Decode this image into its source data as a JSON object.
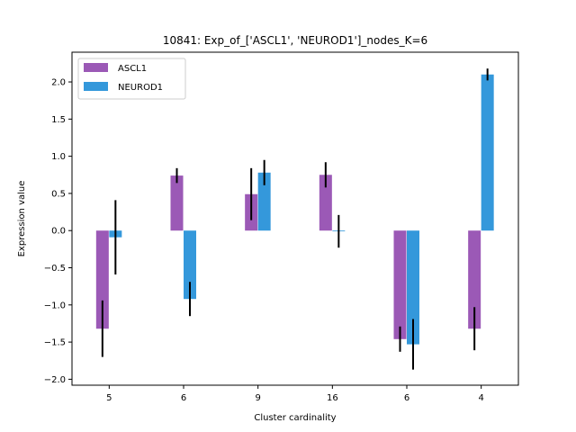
{
  "chart_data": {
    "type": "bar",
    "title": "10841: Exp_of_['ASCL1', 'NEUROD1']_nodes_K=6",
    "xlabel": "Cluster cardinality",
    "ylabel": "Expression value",
    "categories": [
      "5",
      "6",
      "9",
      "16",
      "6",
      "4"
    ],
    "ylim": [
      -2.08,
      2.4
    ],
    "yticks": [
      -2.0,
      -1.5,
      -1.0,
      -0.5,
      0.0,
      0.5,
      1.0,
      1.5,
      2.0
    ],
    "ytick_labels": [
      "−2.0",
      "−1.5",
      "−1.0",
      "−0.5",
      "0.0",
      "0.5",
      "1.0",
      "1.5",
      "2.0"
    ],
    "grid": false,
    "legend_position": "top-left",
    "series": [
      {
        "name": "ASCL1",
        "color": "#9b59b6",
        "values": [
          -1.32,
          0.74,
          0.49,
          0.75,
          -1.46,
          -1.32
        ],
        "error": [
          0.38,
          0.1,
          0.35,
          0.17,
          0.17,
          0.29
        ]
      },
      {
        "name": "NEUROD1",
        "color": "#3498db",
        "values": [
          -0.09,
          -0.92,
          0.78,
          -0.01,
          -1.53,
          2.1
        ],
        "error": [
          0.5,
          0.23,
          0.17,
          0.22,
          0.34,
          0.08
        ]
      }
    ]
  }
}
